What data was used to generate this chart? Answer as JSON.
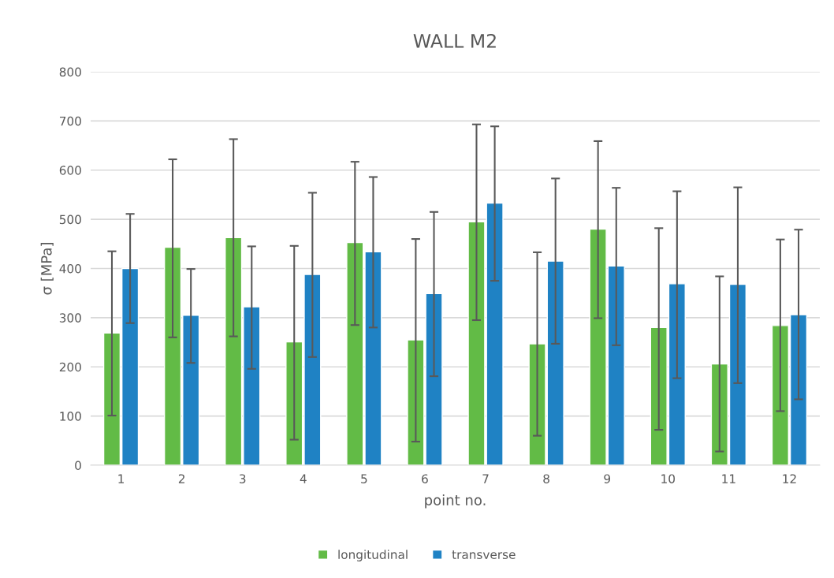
{
  "chart_data": {
    "type": "bar",
    "title": "WALL M2",
    "xlabel": "point no.",
    "ylabel": "σ [MPa]",
    "categories": [
      "1",
      "2",
      "3",
      "4",
      "5",
      "6",
      "7",
      "8",
      "9",
      "10",
      "11",
      "12"
    ],
    "series": [
      {
        "name": "longitudinal",
        "color": "#62bb46",
        "values": [
          269,
          443,
          463,
          251,
          453,
          255,
          495,
          247,
          480,
          280,
          206,
          284
        ],
        "errors": [
          [
            101,
            435
          ],
          [
            260,
            622
          ],
          [
            262,
            663
          ],
          [
            52,
            446
          ],
          [
            285,
            617
          ],
          [
            48,
            460
          ],
          [
            295,
            693
          ],
          [
            60,
            433
          ],
          [
            299,
            659
          ],
          [
            72,
            482
          ],
          [
            28,
            384
          ],
          [
            110,
            459
          ]
        ]
      },
      {
        "name": "transverse",
        "color": "#1f82c4",
        "values": [
          400,
          305,
          322,
          388,
          434,
          349,
          533,
          415,
          405,
          369,
          368,
          306
        ],
        "errors": [
          [
            289,
            511
          ],
          [
            208,
            399
          ],
          [
            196,
            445
          ],
          [
            220,
            554
          ],
          [
            280,
            586
          ],
          [
            181,
            515
          ],
          [
            375,
            689
          ],
          [
            247,
            583
          ],
          [
            244,
            564
          ],
          [
            177,
            557
          ],
          [
            167,
            565
          ],
          [
            134,
            479
          ]
        ]
      }
    ],
    "ylim": [
      0,
      800
    ],
    "yticks": [
      0,
      100,
      200,
      300,
      400,
      500,
      600,
      700,
      800
    ],
    "grid": "y",
    "legend": "bottom"
  }
}
